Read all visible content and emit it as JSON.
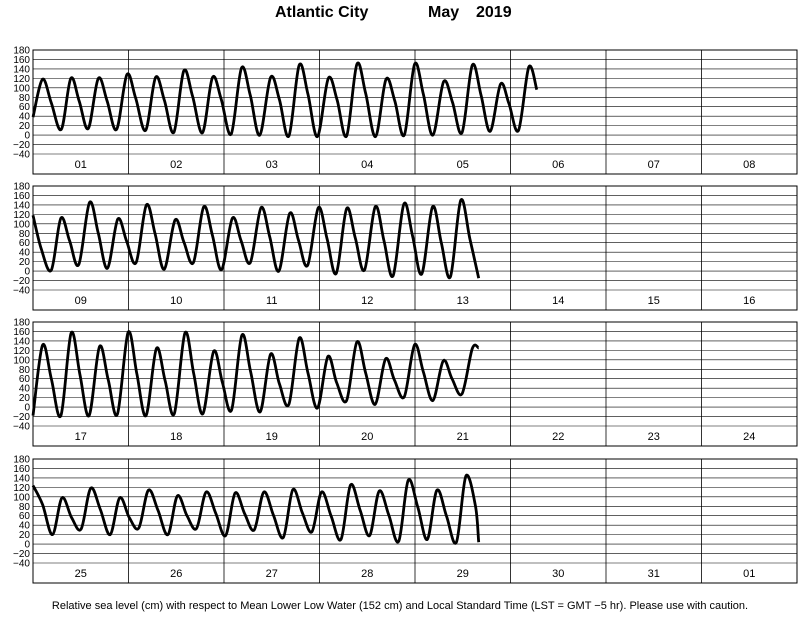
{
  "title": {
    "station": "Atlantic City",
    "month": "May",
    "year": "2019"
  },
  "footnote": "Relative sea level (cm) with respect to Mean Lower Low Water (152 cm) and Local Standard Time (LST = GMT −5 hr). Please use with caution.",
  "chart_data": {
    "type": "line",
    "ylim": [
      -40,
      180
    ],
    "yticks": [
      -40,
      -20,
      0,
      20,
      40,
      60,
      80,
      100,
      120,
      140,
      160,
      180
    ],
    "grid": true,
    "panels": [
      {
        "days": [
          "01",
          "02",
          "03",
          "04",
          "05",
          "06",
          "07",
          "08"
        ],
        "series": [
          {
            "values": [
              [
                0,
                38
              ],
              [
                2.4,
                118
              ],
              [
                4.6,
                68
              ],
              [
                7.1,
                12
              ],
              [
                9.5,
                120
              ],
              [
                11.6,
                72
              ],
              [
                13.9,
                14
              ],
              [
                16.4,
                120
              ],
              [
                18.6,
                73
              ],
              [
                21.0,
                12
              ],
              [
                23.6,
                128
              ],
              [
                25.8,
                78
              ],
              [
                28.3,
                10
              ],
              [
                30.8,
                122
              ],
              [
                33.0,
                74
              ],
              [
                35.4,
                6
              ],
              [
                37.9,
                136
              ],
              [
                40.1,
                82
              ],
              [
                42.6,
                5
              ],
              [
                45.1,
                122
              ],
              [
                47.3,
                76
              ],
              [
                49.8,
                2
              ],
              [
                52.4,
                142
              ],
              [
                54.6,
                84
              ],
              [
                57.0,
                0
              ],
              [
                59.7,
                122
              ],
              [
                61.9,
                76
              ],
              [
                64.3,
                -2
              ],
              [
                66.9,
                148
              ],
              [
                69.1,
                86
              ],
              [
                71.5,
                -3
              ],
              [
                74.2,
                120
              ],
              [
                76.4,
                75
              ],
              [
                78.8,
                -2
              ],
              [
                81.4,
                150
              ],
              [
                83.6,
                88
              ],
              [
                86.1,
                -3
              ],
              [
                88.7,
                118
              ],
              [
                90.9,
                73
              ],
              [
                93.3,
                0
              ],
              [
                95.9,
                150
              ],
              [
                98.1,
                86
              ],
              [
                100.5,
                0
              ],
              [
                103.2,
                113
              ],
              [
                105.4,
                70
              ],
              [
                107.8,
                5
              ],
              [
                110.4,
                148
              ],
              [
                112.6,
                84
              ],
              [
                114.9,
                8
              ],
              [
                117.5,
                108
              ],
              [
                119.6,
                67
              ],
              [
                122.0,
                10
              ],
              [
                124.6,
                144
              ],
              [
                126.6,
                96
              ]
            ]
          }
        ]
      },
      {
        "days": [
          "09",
          "10",
          "11",
          "12",
          "13",
          "14",
          "15",
          "16"
        ],
        "series": [
          {
            "values": [
              [
                0,
                118
              ],
              [
                2.1,
                46
              ],
              [
                4.6,
                2
              ],
              [
                7.0,
                112
              ],
              [
                9.2,
                64
              ],
              [
                11.5,
                14
              ],
              [
                14.2,
                145
              ],
              [
                16.4,
                80
              ],
              [
                18.7,
                6
              ],
              [
                21.3,
                110
              ],
              [
                23.5,
                64
              ],
              [
                25.9,
                18
              ],
              [
                28.5,
                140
              ],
              [
                30.7,
                78
              ],
              [
                33.0,
                4
              ],
              [
                35.7,
                108
              ],
              [
                37.9,
                62
              ],
              [
                40.3,
                18
              ],
              [
                42.9,
                136
              ],
              [
                45.1,
                75
              ],
              [
                47.4,
                3
              ],
              [
                50.1,
                112
              ],
              [
                52.3,
                64
              ],
              [
                54.6,
                18
              ],
              [
                57.3,
                134
              ],
              [
                59.5,
                72
              ],
              [
                61.8,
                0
              ],
              [
                64.5,
                122
              ],
              [
                66.7,
                66
              ],
              [
                69.0,
                12
              ],
              [
                71.7,
                134
              ],
              [
                73.9,
                68
              ],
              [
                76.2,
                -5
              ],
              [
                78.8,
                132
              ],
              [
                81.0,
                70
              ],
              [
                83.3,
                2
              ],
              [
                86.0,
                136
              ],
              [
                88.2,
                64
              ],
              [
                90.5,
                -10
              ],
              [
                93.2,
                142
              ],
              [
                95.4,
                74
              ],
              [
                97.7,
                -6
              ],
              [
                100.4,
                136
              ],
              [
                102.6,
                60
              ],
              [
                104.9,
                -12
              ],
              [
                107.5,
                150
              ],
              [
                109.8,
                68
              ],
              [
                112.0,
                -15
              ]
            ]
          }
        ]
      },
      {
        "days": [
          "17",
          "18",
          "19",
          "20",
          "21",
          "22",
          "23",
          "24"
        ],
        "series": [
          {
            "values": [
              [
                0,
                -18
              ],
              [
                2.4,
                131
              ],
              [
                4.6,
                60
              ],
              [
                7.0,
                -18
              ],
              [
                9.6,
                157
              ],
              [
                11.8,
                68
              ],
              [
                14.1,
                -18
              ],
              [
                16.7,
                128
              ],
              [
                18.9,
                58
              ],
              [
                21.2,
                -15
              ],
              [
                23.9,
                158
              ],
              [
                26.1,
                70
              ],
              [
                28.4,
                -18
              ],
              [
                31.0,
                124
              ],
              [
                33.2,
                56
              ],
              [
                35.5,
                -14
              ],
              [
                38.2,
                157
              ],
              [
                40.4,
                70
              ],
              [
                42.7,
                -14
              ],
              [
                45.4,
                118
              ],
              [
                47.6,
                52
              ],
              [
                49.9,
                -6
              ],
              [
                52.5,
                152
              ],
              [
                54.7,
                74
              ],
              [
                57.1,
                -10
              ],
              [
                59.7,
                112
              ],
              [
                61.9,
                50
              ],
              [
                64.3,
                6
              ],
              [
                66.9,
                146
              ],
              [
                69.1,
                72
              ],
              [
                71.5,
                -2
              ],
              [
                74.1,
                107
              ],
              [
                76.3,
                52
              ],
              [
                78.8,
                14
              ],
              [
                81.4,
                138
              ],
              [
                83.6,
                72
              ],
              [
                86.0,
                6
              ],
              [
                88.6,
                102
              ],
              [
                90.8,
                58
              ],
              [
                93.3,
                22
              ],
              [
                95.9,
                132
              ],
              [
                98.1,
                74
              ],
              [
                100.5,
                14
              ],
              [
                103.1,
                98
              ],
              [
                105.3,
                60
              ],
              [
                107.8,
                28
              ],
              [
                110.4,
                124
              ],
              [
                112.0,
                125
              ]
            ]
          }
        ]
      },
      {
        "days": [
          "25",
          "26",
          "27",
          "28",
          "29",
          "30",
          "31",
          "01"
        ],
        "series": [
          {
            "values": [
              [
                0,
                124
              ],
              [
                2.4,
                84
              ],
              [
                4.9,
                20
              ],
              [
                7.3,
                98
              ],
              [
                9.7,
                56
              ],
              [
                12.1,
                32
              ],
              [
                14.5,
                118
              ],
              [
                16.9,
                74
              ],
              [
                19.4,
                20
              ],
              [
                21.8,
                98
              ],
              [
                24.2,
                56
              ],
              [
                26.6,
                34
              ],
              [
                29.0,
                114
              ],
              [
                31.4,
                72
              ],
              [
                33.9,
                20
              ],
              [
                36.3,
                102
              ],
              [
                38.7,
                60
              ],
              [
                41.1,
                33
              ],
              [
                43.5,
                110
              ],
              [
                45.9,
                66
              ],
              [
                48.4,
                18
              ],
              [
                50.8,
                108
              ],
              [
                53.2,
                64
              ],
              [
                55.6,
                30
              ],
              [
                58.0,
                110
              ],
              [
                60.4,
                62
              ],
              [
                62.9,
                14
              ],
              [
                65.3,
                115
              ],
              [
                67.7,
                66
              ],
              [
                70.1,
                26
              ],
              [
                72.5,
                110
              ],
              [
                74.9,
                60
              ],
              [
                77.4,
                10
              ],
              [
                79.8,
                125
              ],
              [
                82.2,
                72
              ],
              [
                84.6,
                18
              ],
              [
                87.0,
                112
              ],
              [
                89.4,
                62
              ],
              [
                91.9,
                6
              ],
              [
                94.3,
                135
              ],
              [
                96.7,
                78
              ],
              [
                99.1,
                10
              ],
              [
                101.5,
                114
              ],
              [
                103.9,
                60
              ],
              [
                106.4,
                4
              ],
              [
                108.8,
                144
              ],
              [
                111.2,
                80
              ],
              [
                112.0,
                4
              ]
            ]
          }
        ]
      }
    ]
  }
}
